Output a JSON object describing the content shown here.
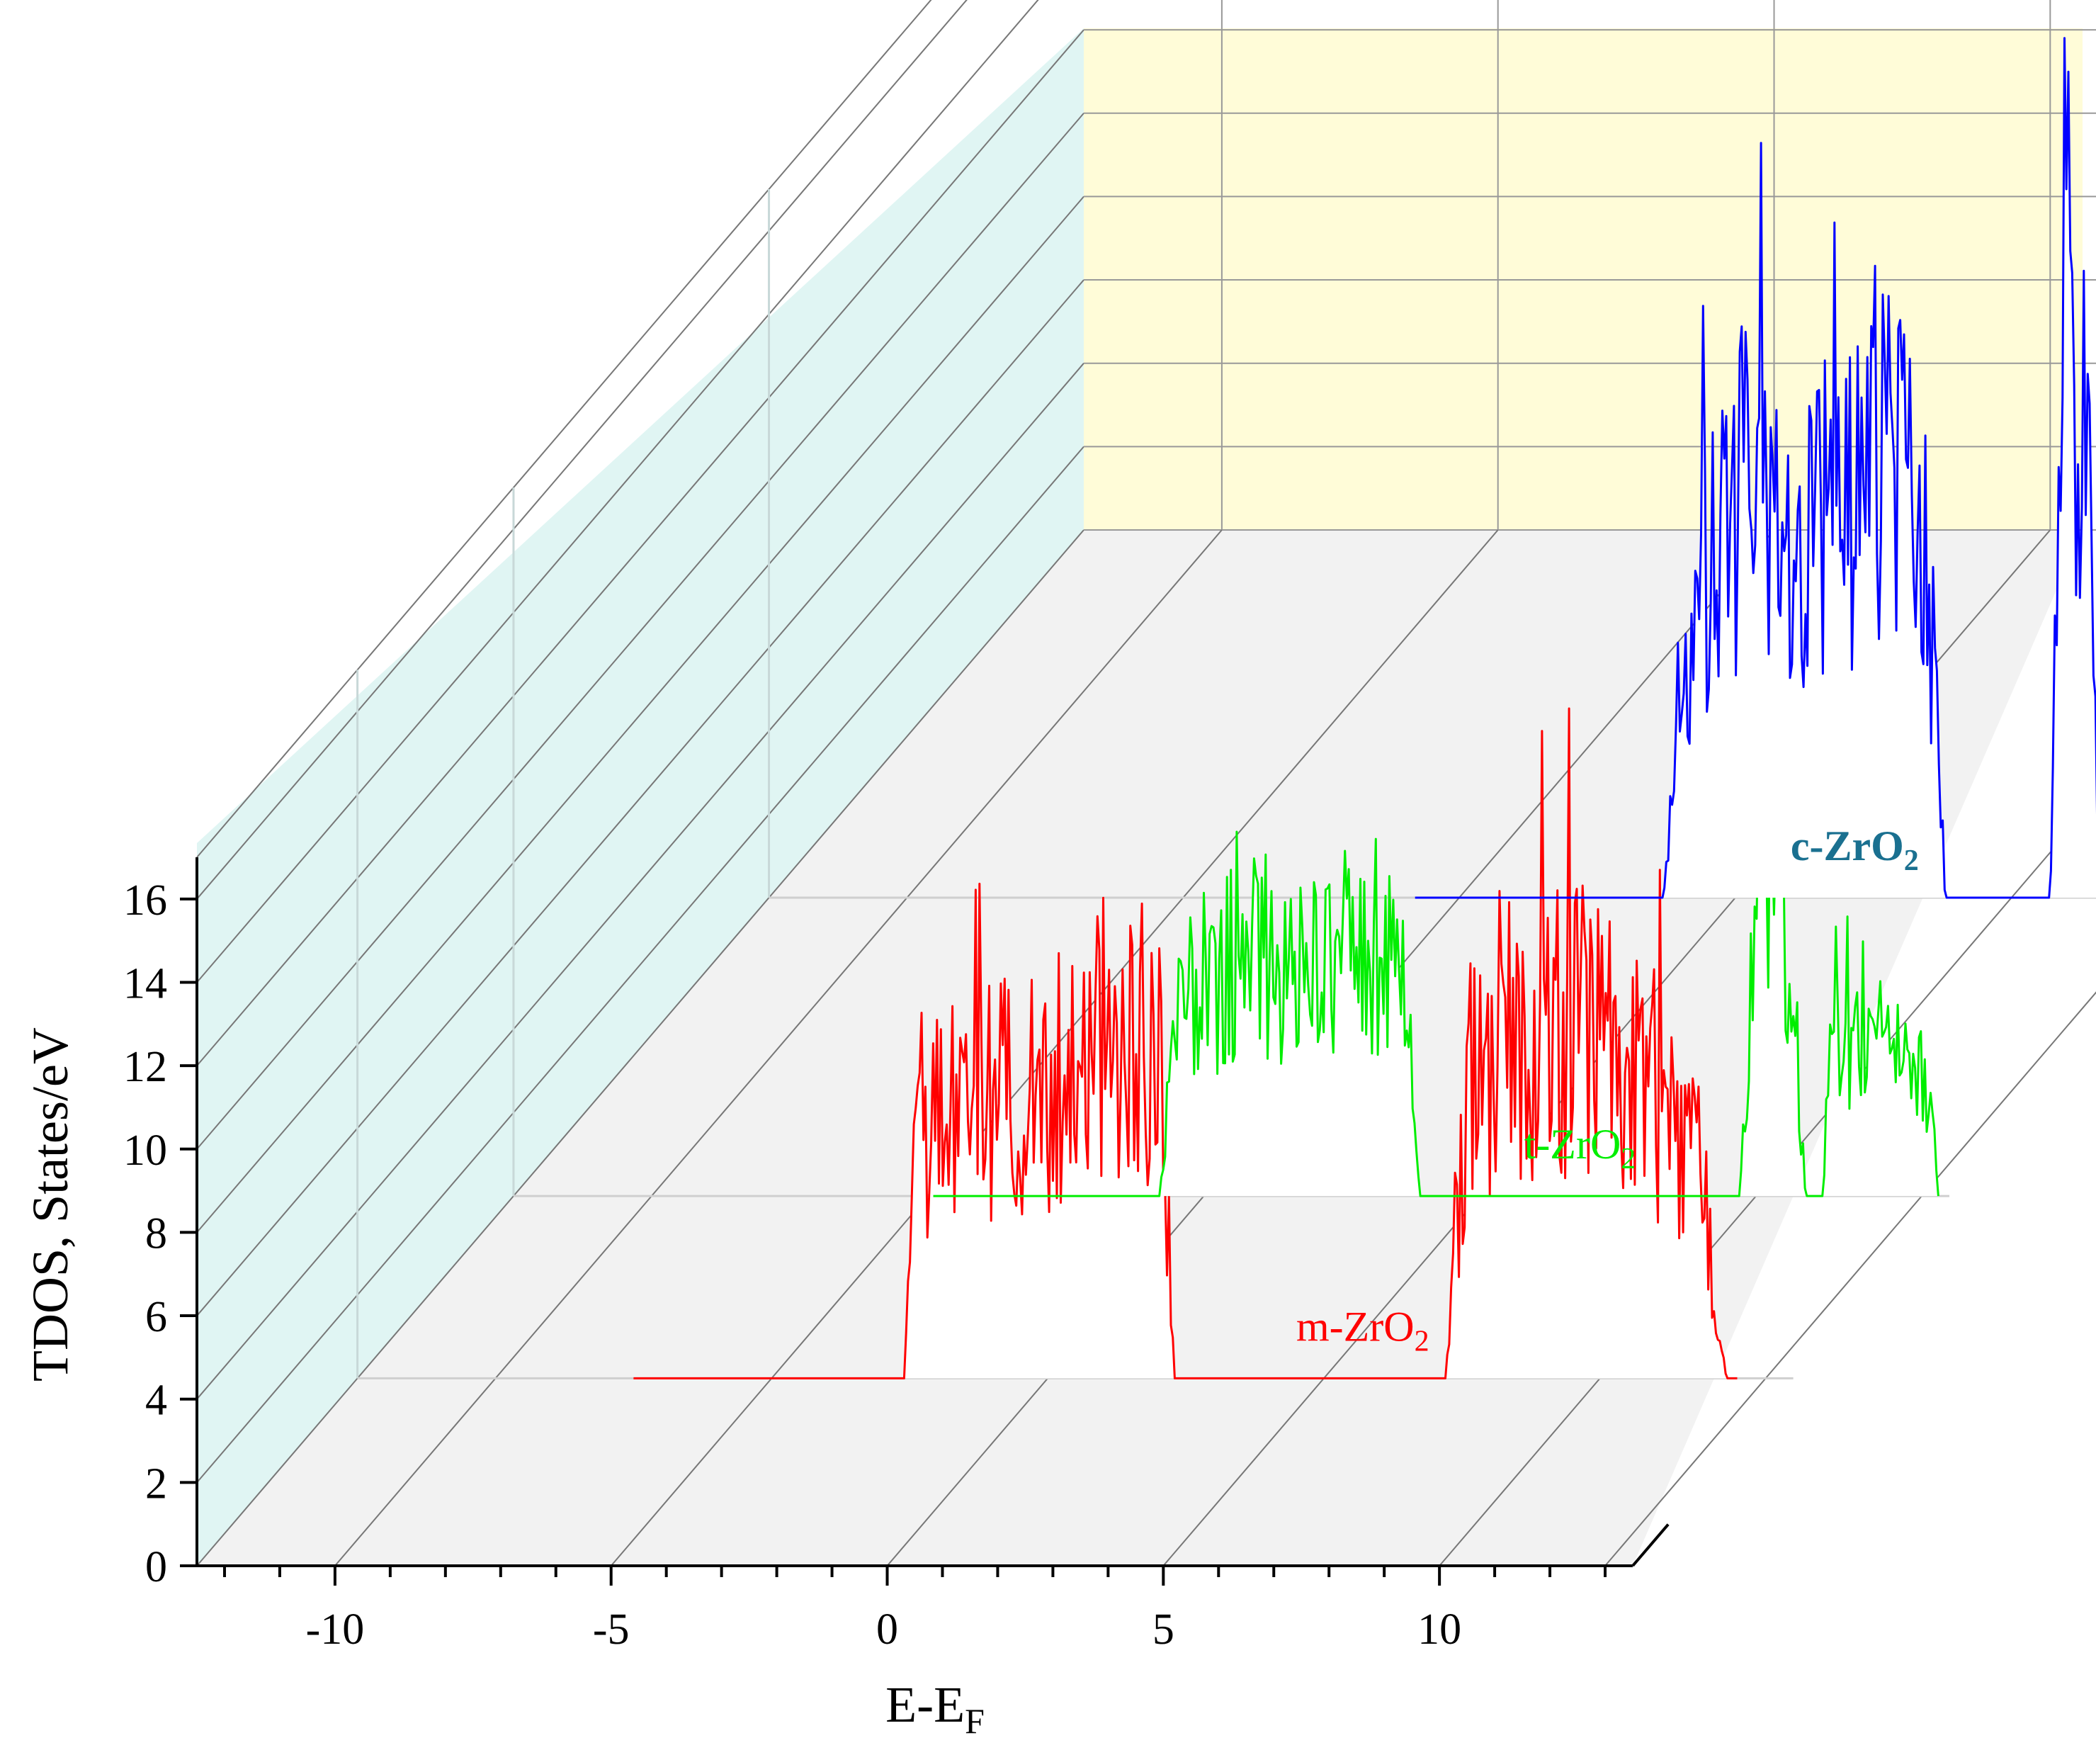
{
  "chart_data": {
    "type": "line",
    "subtype": "3d-waterfall",
    "xlabel": {
      "main": "E-E",
      "sub": "F"
    },
    "ylabel": "TDOS, States/eV",
    "xlim": [
      -12.5,
      13.5
    ],
    "ylim": [
      0,
      17
    ],
    "x_ticks": [
      -10,
      -5,
      0,
      5,
      10
    ],
    "y_ticks": [
      0,
      2,
      4,
      6,
      8,
      10,
      12,
      14,
      16
    ],
    "grid": true,
    "colors": {
      "m-ZrO2": "#ff0000",
      "t-ZrO2": "#00ee00",
      "c-ZrO2": "#0000ff",
      "c-label": "#1a7090",
      "left_wall": "#e0f5f3",
      "back_wall": "#fffcd8",
      "floor": "#f2f2f2"
    },
    "series": [
      {
        "name": "m-ZrO2",
        "label_main": "m-ZrO",
        "label_sub": "2",
        "x_range": [
          -7.5,
          12.5
        ],
        "bands": [
          {
            "start": -2.6,
            "end": 2.3,
            "ramp": 0.25,
            "shape": [
              [
                0,
                6.0
              ],
              [
                0.3,
                6.5
              ],
              [
                0.6,
                7.0
              ],
              [
                0.8,
                8.5
              ],
              [
                1.0,
                7.0
              ]
            ]
          },
          {
            "start": 7.2,
            "end": 12.3,
            "ramp": 0.4,
            "shape": [
              [
                0,
                6.5
              ],
              [
                0.2,
                7.8
              ],
              [
                0.4,
                8.8
              ],
              [
                0.65,
                7.8
              ],
              [
                0.9,
                5.0
              ],
              [
                1.0,
                2.5
              ]
            ]
          }
        ],
        "peaks": [
          [
            0.2,
            10.2
          ],
          [
            -2.0,
            8.6
          ],
          [
            0.8,
            7.8
          ],
          [
            1.4,
            7.6
          ],
          [
            8.7,
            7.4
          ],
          [
            9.5,
            6.5
          ]
        ]
      },
      {
        "name": "t-ZrO2",
        "label_main": "t-ZrO",
        "label_sub": "2",
        "x_range": [
          -4.9,
          13.3
        ],
        "bands": [
          {
            "start": -0.8,
            "end": 3.9,
            "ramp": 0.25,
            "shape": [
              [
                0,
                4.0
              ],
              [
                0.3,
                5.6
              ],
              [
                0.5,
                5.0
              ],
              [
                0.8,
                6.2
              ],
              [
                1.0,
                5.5
              ]
            ]
          },
          {
            "start": 9.7,
            "end": 10.9,
            "ramp": 0.25,
            "shape": [
              [
                0,
                4.5
              ],
              [
                0.4,
                8.0
              ],
              [
                1.0,
                4.8
              ]
            ]
          },
          {
            "start": 11.2,
            "end": 13.3,
            "ramp": 0.15,
            "shape": [
              [
                0,
                3.5
              ],
              [
                0.5,
                3.6
              ],
              [
                1.0,
                2.6
              ]
            ]
          }
        ],
        "peaks": [
          [
            0.9,
            8.1
          ],
          [
            10.2,
            8.2
          ],
          [
            3.3,
            7.2
          ]
        ]
      },
      {
        "name": "c-ZrO2",
        "label_main": "c-ZrO",
        "label_sub": "2",
        "x_range": [
          -0.8,
          12.5
        ],
        "bands": [
          {
            "start": 3.7,
            "end": 8.8,
            "ramp": 0.3,
            "shape": [
              [
                0,
                4.0
              ],
              [
                0.3,
                10.0
              ],
              [
                0.5,
                8.5
              ],
              [
                0.8,
                10.5
              ],
              [
                1.0,
                7.0
              ]
            ]
          },
          {
            "start": 10.7,
            "end": 11.6,
            "ramp": 0.15,
            "shape": [
              [
                0,
                6.0
              ],
              [
                0.3,
                15.5
              ],
              [
                0.7,
                10.5
              ],
              [
                1.0,
                5.0
              ]
            ]
          },
          {
            "start": 11.9,
            "end": 13.6,
            "ramp": 0.15,
            "shape": [
              [
                0,
                4.5
              ],
              [
                0.4,
                9.0
              ],
              [
                0.8,
                8.0
              ],
              [
                1.0,
                7.5
              ]
            ]
          }
        ],
        "peaks": [
          [
            6.8,
            16.2
          ],
          [
            4.4,
            14.2
          ],
          [
            11.0,
            17.0
          ],
          [
            12.9,
            10.4
          ],
          [
            7.3,
            12.0
          ]
        ]
      }
    ]
  }
}
